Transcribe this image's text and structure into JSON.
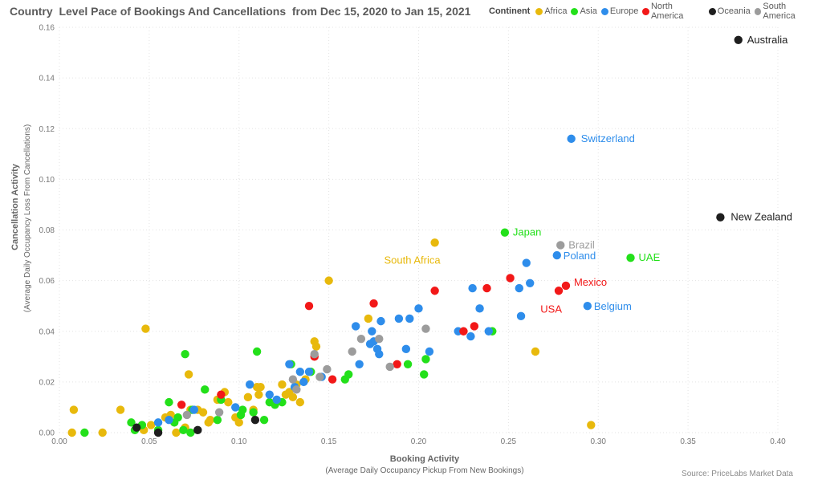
{
  "title": "Country  Level Pace of Bookings And Cancellations  from Dec 15, 2020 to Jan 15, 2021",
  "legend": {
    "title": "Continent",
    "items": [
      {
        "name": "Africa",
        "color": "#E8B90C"
      },
      {
        "name": "Asia",
        "color": "#23E01A"
      },
      {
        "name": "Europe",
        "color": "#2E8DEB"
      },
      {
        "name": "North America",
        "color": "#F21818"
      },
      {
        "name": "Oceania",
        "color": "#1E1E1E"
      },
      {
        "name": "South America",
        "color": "#9C9C9C"
      }
    ]
  },
  "source": "Source: PriceLabs Market  Data",
  "chart_data": {
    "type": "scatter",
    "title": "Country  Level Pace of Bookings And Cancellations  from Dec 15, 2020 to Jan 15, 2021",
    "xlabel": "Booking Activity",
    "xlabel_sub": "(Average Daily Occupancy Pickup From  New Bookings)",
    "ylabel": "Cancellation Activity",
    "ylabel_sub": "(Average Daily Occupancy Loss From Cancellations)",
    "xlim": [
      0,
      0.4
    ],
    "ylim": [
      0,
      0.16
    ],
    "x_ticks": [
      "0.00",
      "0.05",
      "0.10",
      "0.15",
      "0.20",
      "0.25",
      "0.30",
      "0.35",
      "0.40"
    ],
    "y_ticks": [
      "0.00",
      "0.02",
      "0.04",
      "0.06",
      "0.08",
      "0.10",
      "0.12",
      "0.14",
      "0.16"
    ],
    "grid": true,
    "legend_position": "top-right",
    "labeled_points": [
      {
        "label": "Australia",
        "continent": "Oceania",
        "x": 0.378,
        "y": 0.155
      },
      {
        "label": "New Zealand",
        "continent": "Oceania",
        "x": 0.368,
        "y": 0.085
      },
      {
        "label": "Switzerland",
        "continent": "Europe",
        "x": 0.285,
        "y": 0.116
      },
      {
        "label": "Japan",
        "continent": "Asia",
        "x": 0.248,
        "y": 0.079
      },
      {
        "label": "Brazil",
        "continent": "South America",
        "x": 0.279,
        "y": 0.074
      },
      {
        "label": "South Africa",
        "continent": "Africa",
        "x": 0.209,
        "y": 0.075
      },
      {
        "label": "Poland",
        "continent": "Europe",
        "x": 0.277,
        "y": 0.07
      },
      {
        "label": "UAE",
        "continent": "Asia",
        "x": 0.318,
        "y": 0.069
      },
      {
        "label": "Mexico",
        "continent": "North America",
        "x": 0.282,
        "y": 0.058
      },
      {
        "label": "USA",
        "continent": "North America",
        "x": 0.278,
        "y": 0.056
      },
      {
        "label": "Belgium",
        "continent": "Europe",
        "x": 0.294,
        "y": 0.05
      }
    ],
    "series": [
      {
        "name": "Africa",
        "points": [
          [
            0.008,
            0.009
          ],
          [
            0.007,
            0.0
          ],
          [
            0.024,
            0.0
          ],
          [
            0.034,
            0.009
          ],
          [
            0.048,
            0.041
          ],
          [
            0.047,
            0.001
          ],
          [
            0.051,
            0.003
          ],
          [
            0.059,
            0.006
          ],
          [
            0.062,
            0.007
          ],
          [
            0.065,
            0.0
          ],
          [
            0.07,
            0.002
          ],
          [
            0.072,
            0.023
          ],
          [
            0.073,
            0.009
          ],
          [
            0.077,
            0.009
          ],
          [
            0.08,
            0.008
          ],
          [
            0.083,
            0.004
          ],
          [
            0.084,
            0.005
          ],
          [
            0.088,
            0.013
          ],
          [
            0.092,
            0.016
          ],
          [
            0.094,
            0.012
          ],
          [
            0.098,
            0.006
          ],
          [
            0.1,
            0.004
          ],
          [
            0.101,
            0.007
          ],
          [
            0.105,
            0.014
          ],
          [
            0.108,
            0.009
          ],
          [
            0.11,
            0.018
          ],
          [
            0.111,
            0.015
          ],
          [
            0.112,
            0.018
          ],
          [
            0.124,
            0.019
          ],
          [
            0.126,
            0.015
          ],
          [
            0.128,
            0.016
          ],
          [
            0.13,
            0.014
          ],
          [
            0.132,
            0.019
          ],
          [
            0.134,
            0.012
          ],
          [
            0.137,
            0.021
          ],
          [
            0.142,
            0.036
          ],
          [
            0.143,
            0.034
          ],
          [
            0.15,
            0.06
          ],
          [
            0.172,
            0.045
          ],
          [
            0.209,
            0.075
          ],
          [
            0.265,
            0.032
          ],
          [
            0.296,
            0.003
          ]
        ]
      },
      {
        "name": "Asia",
        "points": [
          [
            0.014,
            0.0
          ],
          [
            0.04,
            0.004
          ],
          [
            0.042,
            0.001
          ],
          [
            0.046,
            0.003
          ],
          [
            0.055,
            0.001
          ],
          [
            0.061,
            0.012
          ],
          [
            0.064,
            0.004
          ],
          [
            0.066,
            0.006
          ],
          [
            0.069,
            0.001
          ],
          [
            0.07,
            0.031
          ],
          [
            0.073,
            0.0
          ],
          [
            0.074,
            0.009
          ],
          [
            0.081,
            0.017
          ],
          [
            0.088,
            0.005
          ],
          [
            0.09,
            0.013
          ],
          [
            0.101,
            0.007
          ],
          [
            0.102,
            0.009
          ],
          [
            0.108,
            0.008
          ],
          [
            0.11,
            0.032
          ],
          [
            0.114,
            0.005
          ],
          [
            0.117,
            0.012
          ],
          [
            0.12,
            0.011
          ],
          [
            0.124,
            0.012
          ],
          [
            0.129,
            0.027
          ],
          [
            0.14,
            0.024
          ],
          [
            0.159,
            0.021
          ],
          [
            0.161,
            0.023
          ],
          [
            0.194,
            0.027
          ],
          [
            0.203,
            0.023
          ],
          [
            0.204,
            0.029
          ],
          [
            0.241,
            0.04
          ],
          [
            0.248,
            0.079
          ],
          [
            0.318,
            0.069
          ]
        ]
      },
      {
        "name": "Europe",
        "points": [
          [
            0.055,
            0.004
          ],
          [
            0.061,
            0.005
          ],
          [
            0.075,
            0.009
          ],
          [
            0.098,
            0.01
          ],
          [
            0.106,
            0.019
          ],
          [
            0.117,
            0.015
          ],
          [
            0.121,
            0.013
          ],
          [
            0.128,
            0.027
          ],
          [
            0.131,
            0.018
          ],
          [
            0.134,
            0.024
          ],
          [
            0.136,
            0.02
          ],
          [
            0.139,
            0.024
          ],
          [
            0.146,
            0.022
          ],
          [
            0.165,
            0.042
          ],
          [
            0.167,
            0.027
          ],
          [
            0.173,
            0.035
          ],
          [
            0.174,
            0.04
          ],
          [
            0.175,
            0.036
          ],
          [
            0.177,
            0.033
          ],
          [
            0.178,
            0.031
          ],
          [
            0.179,
            0.044
          ],
          [
            0.189,
            0.045
          ],
          [
            0.193,
            0.033
          ],
          [
            0.195,
            0.045
          ],
          [
            0.2,
            0.049
          ],
          [
            0.206,
            0.032
          ],
          [
            0.222,
            0.04
          ],
          [
            0.229,
            0.038
          ],
          [
            0.23,
            0.057
          ],
          [
            0.234,
            0.049
          ],
          [
            0.239,
            0.04
          ],
          [
            0.256,
            0.057
          ],
          [
            0.257,
            0.046
          ],
          [
            0.26,
            0.067
          ],
          [
            0.262,
            0.059
          ],
          [
            0.277,
            0.07
          ],
          [
            0.285,
            0.116
          ],
          [
            0.294,
            0.05
          ]
        ]
      },
      {
        "name": "North America",
        "points": [
          [
            0.068,
            0.011
          ],
          [
            0.09,
            0.015
          ],
          [
            0.139,
            0.05
          ],
          [
            0.142,
            0.03
          ],
          [
            0.152,
            0.021
          ],
          [
            0.175,
            0.051
          ],
          [
            0.188,
            0.027
          ],
          [
            0.209,
            0.056
          ],
          [
            0.225,
            0.04
          ],
          [
            0.231,
            0.042
          ],
          [
            0.238,
            0.057
          ],
          [
            0.251,
            0.061
          ],
          [
            0.278,
            0.056
          ],
          [
            0.282,
            0.058
          ]
        ]
      },
      {
        "name": "Oceania",
        "points": [
          [
            0.043,
            0.002
          ],
          [
            0.055,
            0.0
          ],
          [
            0.077,
            0.001
          ],
          [
            0.109,
            0.005
          ],
          [
            0.368,
            0.085
          ],
          [
            0.378,
            0.155
          ]
        ]
      },
      {
        "name": "South America",
        "points": [
          [
            0.071,
            0.007
          ],
          [
            0.089,
            0.008
          ],
          [
            0.13,
            0.021
          ],
          [
            0.132,
            0.017
          ],
          [
            0.142,
            0.031
          ],
          [
            0.145,
            0.022
          ],
          [
            0.149,
            0.025
          ],
          [
            0.163,
            0.032
          ],
          [
            0.168,
            0.037
          ],
          [
            0.178,
            0.037
          ],
          [
            0.184,
            0.026
          ],
          [
            0.204,
            0.041
          ],
          [
            0.279,
            0.074
          ]
        ]
      }
    ]
  }
}
